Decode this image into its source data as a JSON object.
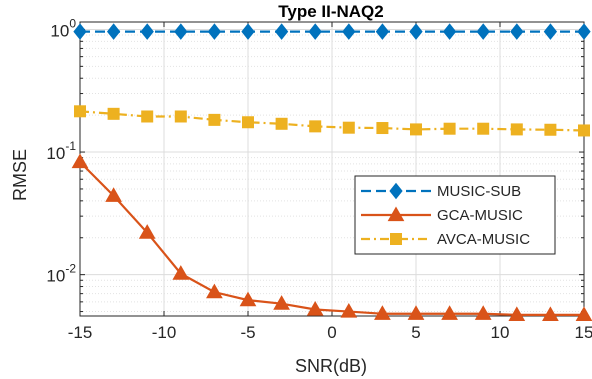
{
  "chart_data": {
    "type": "line",
    "title": "Type II-NAQ2",
    "xlabel": "SNR(dB)",
    "ylabel": "RMSE",
    "xlim": [
      -15,
      15
    ],
    "ylim": [
      0.0046,
      1.15
    ],
    "yscale": "log",
    "grid": true,
    "legend_position": "center-right",
    "x_ticks": [
      -15,
      -10,
      -5,
      0,
      5,
      10,
      15
    ],
    "x_tick_labels": [
      "-15",
      "-10",
      "-5",
      "0",
      "5",
      "10",
      "15"
    ],
    "y_ticks": [
      0.01,
      0.1,
      1
    ],
    "y_tick_labels": [
      {
        "base": "10",
        "exp": "-2"
      },
      {
        "base": "10",
        "exp": "-1"
      },
      {
        "base": "10",
        "exp": "0"
      }
    ],
    "x": [
      -15,
      -13,
      -11,
      -9,
      -7,
      -5,
      -3,
      -1,
      1,
      3,
      5,
      7,
      9,
      11,
      13,
      15
    ],
    "series": [
      {
        "name": "MUSIC-SUB",
        "color": "#0072bd",
        "dash": "dashed",
        "marker": "diamond",
        "values": [
          0.96,
          0.96,
          0.96,
          0.96,
          0.96,
          0.96,
          0.96,
          0.96,
          0.96,
          0.96,
          0.96,
          0.96,
          0.96,
          0.96,
          0.96,
          0.96
        ]
      },
      {
        "name": "GCA-MUSIC",
        "color": "#d95319",
        "dash": "solid",
        "marker": "triangle",
        "values": [
          0.083,
          0.044,
          0.022,
          0.0102,
          0.0072,
          0.0062,
          0.0058,
          0.0052,
          0.005,
          0.0048,
          0.0048,
          0.0048,
          0.0048,
          0.0047,
          0.0047,
          0.0047
        ]
      },
      {
        "name": "AVCA-MUSIC",
        "color": "#edb120",
        "dash": "dashdot",
        "marker": "square",
        "values": [
          0.215,
          0.205,
          0.195,
          0.195,
          0.183,
          0.175,
          0.17,
          0.162,
          0.158,
          0.157,
          0.153,
          0.155,
          0.155,
          0.153,
          0.152,
          0.15
        ]
      }
    ]
  }
}
